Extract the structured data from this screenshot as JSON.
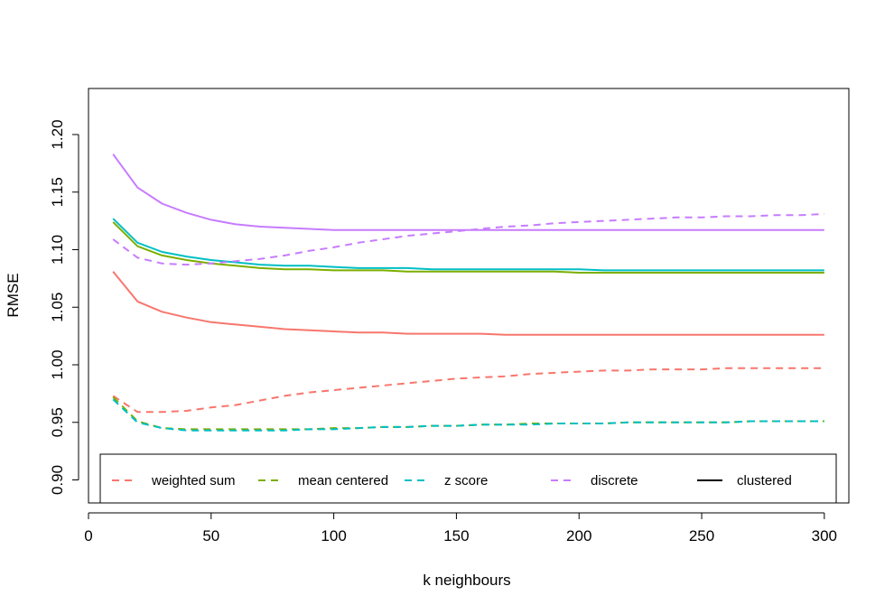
{
  "chart_data": {
    "type": "line",
    "title": "",
    "xlabel": "k neighbours",
    "ylabel": "RMSE",
    "xlim": [
      0,
      310
    ],
    "ylim": [
      0.88,
      1.24
    ],
    "xticks": [
      0,
      50,
      100,
      150,
      200,
      250,
      300
    ],
    "yticks": [
      0.9,
      0.95,
      1.0,
      1.05,
      1.1,
      1.15,
      1.2
    ],
    "ytick_labels": [
      "0.90",
      "0.95",
      "1.00",
      "1.05",
      "1.10",
      "1.15",
      "1.20"
    ],
    "grid": false,
    "legend_position": "bottom",
    "x": [
      10,
      20,
      30,
      40,
      50,
      60,
      70,
      80,
      90,
      100,
      110,
      120,
      130,
      140,
      150,
      160,
      170,
      180,
      190,
      200,
      210,
      220,
      230,
      240,
      250,
      260,
      270,
      280,
      290,
      300
    ],
    "legend": [
      {
        "label": "weighted sum",
        "color": "#F8766D",
        "dash": "dashed"
      },
      {
        "label": "mean centered",
        "color": "#7CAE00",
        "dash": "dashed"
      },
      {
        "label": "z score",
        "color": "#00BFC4",
        "dash": "dashed"
      },
      {
        "label": "discrete",
        "color": "#C77CFF",
        "dash": "dashed"
      },
      {
        "label": "clustered",
        "color": "#000000",
        "dash": "solid"
      }
    ],
    "series": [
      {
        "method": "weighted sum",
        "style": "solid",
        "color": "#F8766D",
        "values": [
          1.081,
          1.055,
          1.046,
          1.041,
          1.037,
          1.035,
          1.033,
          1.031,
          1.03,
          1.029,
          1.028,
          1.028,
          1.027,
          1.027,
          1.027,
          1.027,
          1.026,
          1.026,
          1.026,
          1.026,
          1.026,
          1.026,
          1.026,
          1.026,
          1.026,
          1.026,
          1.026,
          1.026,
          1.026,
          1.026
        ]
      },
      {
        "method": "mean centered",
        "style": "solid",
        "color": "#7CAE00",
        "values": [
          1.124,
          1.103,
          1.095,
          1.091,
          1.088,
          1.086,
          1.084,
          1.083,
          1.083,
          1.082,
          1.082,
          1.082,
          1.081,
          1.081,
          1.081,
          1.081,
          1.081,
          1.081,
          1.081,
          1.08,
          1.08,
          1.08,
          1.08,
          1.08,
          1.08,
          1.08,
          1.08,
          1.08,
          1.08,
          1.08
        ]
      },
      {
        "method": "z score",
        "style": "solid",
        "color": "#00BFC4",
        "values": [
          1.127,
          1.106,
          1.098,
          1.094,
          1.091,
          1.089,
          1.087,
          1.086,
          1.086,
          1.085,
          1.084,
          1.084,
          1.084,
          1.083,
          1.083,
          1.083,
          1.083,
          1.083,
          1.083,
          1.083,
          1.082,
          1.082,
          1.082,
          1.082,
          1.082,
          1.082,
          1.082,
          1.082,
          1.082,
          1.082
        ]
      },
      {
        "method": "discrete",
        "style": "solid",
        "color": "#C77CFF",
        "values": [
          1.183,
          1.154,
          1.14,
          1.132,
          1.126,
          1.122,
          1.12,
          1.119,
          1.118,
          1.117,
          1.117,
          1.117,
          1.117,
          1.117,
          1.117,
          1.117,
          1.117,
          1.117,
          1.117,
          1.117,
          1.117,
          1.117,
          1.117,
          1.117,
          1.117,
          1.117,
          1.117,
          1.117,
          1.117,
          1.117
        ]
      },
      {
        "method": "weighted sum",
        "style": "dashed",
        "color": "#F8766D",
        "values": [
          0.973,
          0.959,
          0.959,
          0.96,
          0.963,
          0.965,
          0.969,
          0.973,
          0.976,
          0.978,
          0.98,
          0.982,
          0.984,
          0.986,
          0.988,
          0.989,
          0.99,
          0.992,
          0.993,
          0.994,
          0.995,
          0.995,
          0.996,
          0.996,
          0.996,
          0.997,
          0.997,
          0.997,
          0.997,
          0.997
        ]
      },
      {
        "method": "mean centered",
        "style": "dashed",
        "color": "#7CAE00",
        "values": [
          0.972,
          0.951,
          0.945,
          0.944,
          0.944,
          0.944,
          0.944,
          0.944,
          0.944,
          0.945,
          0.945,
          0.946,
          0.946,
          0.947,
          0.947,
          0.948,
          0.948,
          0.949,
          0.949,
          0.949,
          0.949,
          0.95,
          0.95,
          0.95,
          0.95,
          0.95,
          0.951,
          0.951,
          0.951,
          0.951
        ]
      },
      {
        "method": "z score",
        "style": "dashed",
        "color": "#00BFC4",
        "values": [
          0.97,
          0.95,
          0.945,
          0.943,
          0.943,
          0.943,
          0.943,
          0.943,
          0.944,
          0.944,
          0.945,
          0.946,
          0.946,
          0.947,
          0.947,
          0.948,
          0.948,
          0.948,
          0.949,
          0.949,
          0.949,
          0.95,
          0.95,
          0.95,
          0.95,
          0.95,
          0.951,
          0.951,
          0.951,
          0.951
        ]
      },
      {
        "method": "discrete",
        "style": "dashed",
        "color": "#C77CFF",
        "values": [
          1.109,
          1.093,
          1.088,
          1.087,
          1.088,
          1.09,
          1.092,
          1.095,
          1.099,
          1.102,
          1.106,
          1.109,
          1.112,
          1.114,
          1.116,
          1.118,
          1.12,
          1.121,
          1.123,
          1.124,
          1.125,
          1.126,
          1.127,
          1.128,
          1.128,
          1.129,
          1.129,
          1.13,
          1.13,
          1.131
        ]
      }
    ]
  }
}
